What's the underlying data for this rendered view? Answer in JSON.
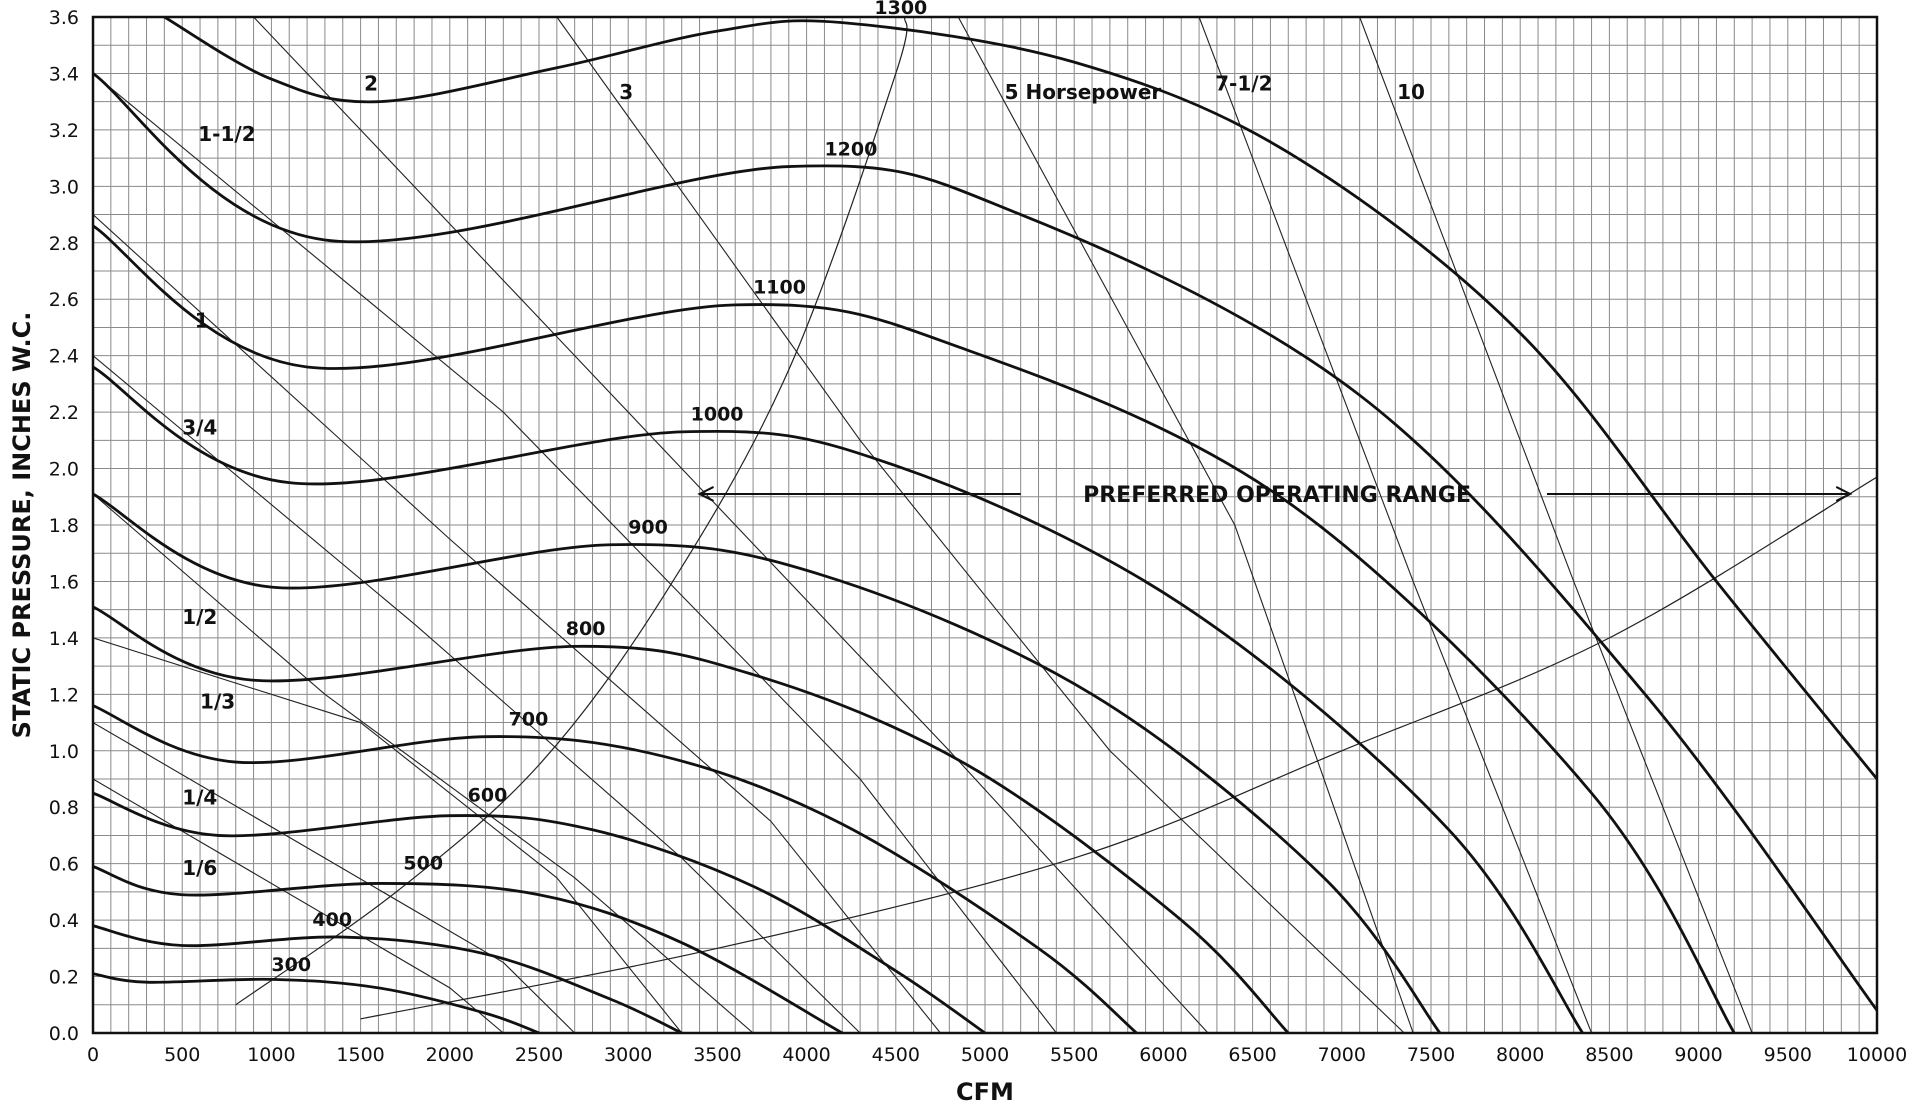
{
  "chart_data": {
    "type": "line",
    "xlabel": "CFM",
    "ylabel": "STATIC PRESSURE, INCHES W.C.",
    "xlim": [
      0,
      10000
    ],
    "ylim": [
      0,
      3.6
    ],
    "x_ticks": [
      "0",
      "500",
      "1000",
      "1500",
      "2000",
      "2500",
      "3000",
      "3500",
      "4000",
      "4500",
      "5000",
      "5500",
      "6000",
      "6500",
      "7000",
      "7500",
      "8000",
      "8500",
      "9000",
      "9500",
      "10000"
    ],
    "y_ticks": [
      "0.0",
      "0.2",
      "0.4",
      "0.6",
      "0.8",
      "1.0",
      "1.2",
      "1.4",
      "1.6",
      "1.8",
      "2.0",
      "2.2",
      "2.4",
      "2.6",
      "2.8",
      "3.0",
      "3.2",
      "3.4",
      "3.6"
    ],
    "grid": true,
    "rpm_curves": [
      {
        "name": "300",
        "label": [
          1000,
          0.22
        ],
        "points": [
          [
            0,
            0.21
          ],
          [
            300,
            0.18
          ],
          [
            1000,
            0.19
          ],
          [
            1600,
            0.16
          ],
          [
            2200,
            0.07
          ],
          [
            2500,
            0.0
          ]
        ]
      },
      {
        "name": "400",
        "label": [
          1230,
          0.38
        ],
        "points": [
          [
            0,
            0.38
          ],
          [
            500,
            0.31
          ],
          [
            1400,
            0.34
          ],
          [
            2200,
            0.28
          ],
          [
            2900,
            0.12
          ],
          [
            3300,
            0.0
          ]
        ]
      },
      {
        "name": "500",
        "label": [
          1740,
          0.58
        ],
        "points": [
          [
            0,
            0.59
          ],
          [
            500,
            0.49
          ],
          [
            1600,
            0.53
          ],
          [
            2500,
            0.49
          ],
          [
            3300,
            0.32
          ],
          [
            4200,
            0.0
          ]
        ]
      },
      {
        "name": "600",
        "label": [
          2100,
          0.82
        ],
        "points": [
          [
            0,
            0.85
          ],
          [
            700,
            0.7
          ],
          [
            2000,
            0.77
          ],
          [
            2800,
            0.72
          ],
          [
            3700,
            0.52
          ],
          [
            4500,
            0.22
          ],
          [
            5000,
            0.0
          ]
        ]
      },
      {
        "name": "700",
        "label": [
          2330,
          1.09
        ],
        "points": [
          [
            0,
            1.16
          ],
          [
            800,
            0.96
          ],
          [
            2200,
            1.05
          ],
          [
            3200,
            0.98
          ],
          [
            4200,
            0.74
          ],
          [
            5300,
            0.3
          ],
          [
            5850,
            0.0
          ]
        ]
      },
      {
        "name": "800",
        "label": [
          2650,
          1.41
        ],
        "points": [
          [
            0,
            1.51
          ],
          [
            900,
            1.25
          ],
          [
            2700,
            1.37
          ],
          [
            3700,
            1.27
          ],
          [
            4900,
            0.95
          ],
          [
            6100,
            0.4
          ],
          [
            6700,
            0.0
          ]
        ]
      },
      {
        "name": "900",
        "label": [
          3000,
          1.77
        ],
        "points": [
          [
            0,
            1.91
          ],
          [
            1000,
            1.58
          ],
          [
            2900,
            1.73
          ],
          [
            4100,
            1.62
          ],
          [
            5600,
            1.2
          ],
          [
            6900,
            0.55
          ],
          [
            7550,
            0.0
          ]
        ]
      },
      {
        "name": "1000",
        "label": [
          3350,
          2.17
        ],
        "points": [
          [
            0,
            2.36
          ],
          [
            1100,
            1.95
          ],
          [
            3300,
            2.13
          ],
          [
            4500,
            2.01
          ],
          [
            6100,
            1.52
          ],
          [
            7600,
            0.72
          ],
          [
            8350,
            0.0
          ]
        ]
      },
      {
        "name": "1100",
        "label": [
          3700,
          2.62
        ],
        "points": [
          [
            0,
            2.86
          ],
          [
            1200,
            2.36
          ],
          [
            3600,
            2.58
          ],
          [
            4900,
            2.42
          ],
          [
            6700,
            1.88
          ],
          [
            8400,
            0.85
          ],
          [
            9200,
            0.0
          ]
        ]
      },
      {
        "name": "1200",
        "label": [
          4100,
          3.11
        ],
        "points": [
          [
            0,
            3.4
          ],
          [
            1300,
            2.81
          ],
          [
            3900,
            3.07
          ],
          [
            5200,
            2.9
          ],
          [
            7100,
            2.26
          ],
          [
            8700,
            1.2
          ],
          [
            10000,
            0.08
          ]
        ]
      },
      {
        "name": "1300",
        "label": [
          4380,
          3.61
        ],
        "points": [
          [
            400,
            3.6
          ],
          [
            1000,
            3.38
          ],
          [
            1600,
            3.3
          ],
          [
            2600,
            3.42
          ],
          [
            3500,
            3.55
          ],
          [
            4200,
            3.58
          ],
          [
            5500,
            3.44
          ],
          [
            6700,
            3.12
          ],
          [
            8000,
            2.48
          ],
          [
            9100,
            1.6
          ],
          [
            10000,
            0.9
          ]
        ]
      }
    ],
    "horsepower_lines": [
      {
        "name": "1/6",
        "label": [
          500,
          0.56
        ],
        "points": [
          [
            0,
            0.9
          ],
          [
            2000,
            0.16
          ],
          [
            2300,
            0.0
          ]
        ]
      },
      {
        "name": "1/4",
        "label": [
          500,
          0.81
        ],
        "points": [
          [
            0,
            1.1
          ],
          [
            2300,
            0.25
          ],
          [
            2700,
            0.0
          ]
        ]
      },
      {
        "name": "1/3",
        "label": [
          600,
          1.15
        ],
        "points": [
          [
            0,
            1.4
          ],
          [
            1500,
            1.1
          ],
          [
            2600,
            0.55
          ],
          [
            3300,
            0.0
          ]
        ]
      },
      {
        "name": "1/2",
        "label": [
          500,
          1.45
        ],
        "points": [
          [
            0,
            1.91
          ],
          [
            1300,
            1.2
          ],
          [
            2700,
            0.55
          ],
          [
            3700,
            0.0
          ]
        ]
      },
      {
        "name": "3/4",
        "label": [
          500,
          2.12
        ],
        "points": [
          [
            0,
            2.4
          ],
          [
            1800,
            1.45
          ],
          [
            3300,
            0.62
          ],
          [
            4300,
            0.0
          ]
        ]
      },
      {
        "name": "1",
        "label": [
          570,
          2.5
        ],
        "points": [
          [
            0,
            2.9
          ],
          [
            2000,
            1.75
          ],
          [
            3800,
            0.75
          ],
          [
            4750,
            0.0
          ]
        ]
      },
      {
        "name": "1-1/2",
        "label": [
          590,
          3.16
        ],
        "points": [
          [
            0,
            3.4
          ],
          [
            2300,
            2.2
          ],
          [
            4300,
            0.9
          ],
          [
            5400,
            0.0
          ]
        ]
      },
      {
        "name": "2",
        "label": [
          1520,
          3.34
        ],
        "points": [
          [
            900,
            3.6
          ],
          [
            2700,
            2.4
          ],
          [
            4800,
            1.0
          ],
          [
            6250,
            0.0
          ]
        ]
      },
      {
        "name": "3",
        "label": [
          2950,
          3.31
        ],
        "points": [
          [
            2600,
            3.6
          ],
          [
            4300,
            2.1
          ],
          [
            5700,
            1.0
          ],
          [
            7350,
            0.0
          ]
        ]
      },
      {
        "name": "5 Horsepower",
        "label": [
          5110,
          3.31
        ],
        "points": [
          [
            4850,
            3.6
          ],
          [
            6400,
            1.8
          ],
          [
            7400,
            0.0
          ]
        ]
      },
      {
        "name": "7-1/2",
        "label": [
          6290,
          3.34
        ],
        "points": [
          [
            6200,
            3.6
          ],
          [
            7400,
            1.6
          ],
          [
            8400,
            0.0
          ]
        ]
      },
      {
        "name": "10",
        "label": [
          7310,
          3.31
        ],
        "points": [
          [
            7100,
            3.6
          ],
          [
            8300,
            1.6
          ],
          [
            9300,
            0.0
          ]
        ]
      }
    ],
    "boundary_lines": [
      {
        "points": [
          [
            800,
            0.1
          ],
          [
            1700,
            0.5
          ],
          [
            2500,
            0.95
          ],
          [
            3200,
            1.55
          ],
          [
            3900,
            2.35
          ],
          [
            4500,
            3.4
          ],
          [
            4550,
            3.6
          ]
        ]
      },
      {
        "points": [
          [
            1500,
            0.05
          ],
          [
            3500,
            0.3
          ],
          [
            5500,
            0.62
          ],
          [
            7000,
            1.0
          ],
          [
            8500,
            1.4
          ],
          [
            10000,
            1.97
          ]
        ]
      }
    ],
    "annotations": [
      {
        "text": "PREFERRED OPERATING RANGE",
        "x": 5550,
        "y": 1.91,
        "arrow_left_to": 3400,
        "arrow_left_from": 5200,
        "arrow_right_from": 8150,
        "arrow_right_to": 9850
      }
    ]
  }
}
